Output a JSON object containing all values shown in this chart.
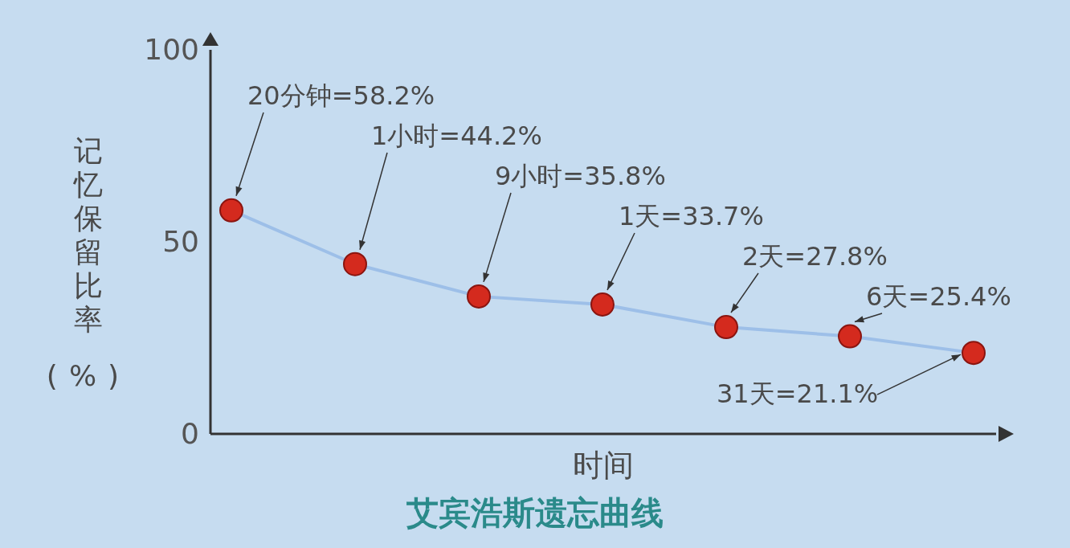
{
  "chart_data": {
    "type": "line",
    "title": "艾宾浩斯遗忘曲线",
    "xlabel": "时间",
    "ylabel": "记忆保留比率(%)",
    "categories": [
      null,
      null,
      null,
      null,
      null,
      null,
      null
    ],
    "series": [
      {
        "color": "#d42a1e",
        "values": [
          58.2,
          44.2,
          35.8,
          33.7,
          27.8,
          25.4,
          21.1
        ],
        "value_labels": [
          "20分钟=58.2%",
          "1小时=44.2%",
          "9小时=35.8%",
          "1天=33.7%",
          "2天=27.8%",
          "6天=25.4%",
          "31天=21.1%"
        ]
      }
    ],
    "ylim": [
      0,
      100
    ],
    "yticks": [
      0,
      50,
      100
    ],
    "marker": "circle",
    "line_style": "solid"
  }
}
